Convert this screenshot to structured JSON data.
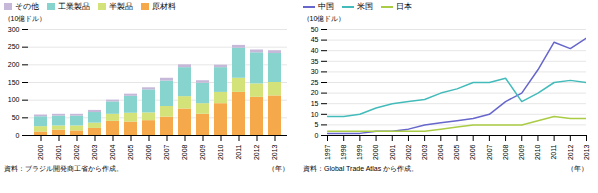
{
  "chart_data": [
    {
      "type": "bar",
      "stacked": true,
      "ylabel": "（10億ドル）",
      "xlabel": "（年）",
      "annotations": [
        "資料：ブラジル開発商工省から作成。"
      ],
      "categories": [
        "2000",
        "2001",
        "2002",
        "2003",
        "2004",
        "2005",
        "2006",
        "2007",
        "2008",
        "2009",
        "2010",
        "2011",
        "2012",
        "2013"
      ],
      "series": [
        {
          "name": "原材料",
          "color": "#F5A94B",
          "values": [
            10,
            15,
            13,
            20,
            40,
            38,
            42,
            52,
            75,
            60,
            90,
            122,
            108,
            112
          ]
        },
        {
          "name": "半製品",
          "color": "#D4E27A",
          "values": [
            15,
            12,
            14,
            15,
            20,
            25,
            22,
            30,
            35,
            30,
            32,
            40,
            38,
            38
          ]
        },
        {
          "name": "工業製品",
          "color": "#87D3CE",
          "values": [
            28,
            28,
            28,
            30,
            35,
            48,
            65,
            72,
            82,
            58,
            70,
            85,
            88,
            82
          ]
        },
        {
          "name": "その他",
          "color": "#C5B8D9",
          "values": [
            5,
            5,
            5,
            6,
            5,
            6,
            6,
            8,
            8,
            7,
            7,
            8,
            8,
            8
          ]
        }
      ],
      "ylim": [
        0,
        300
      ],
      "yticks": [
        0,
        50,
        100,
        150,
        200,
        250,
        300
      ],
      "grid": true,
      "legend": "upper left"
    },
    {
      "type": "line",
      "ylabel": "（10億ドル）",
      "xlabel": "（年）",
      "annotations": [
        "資料：Global Trade Atlas から作成。"
      ],
      "x": [
        1997,
        1998,
        1999,
        2000,
        2001,
        2002,
        2003,
        2004,
        2005,
        2006,
        2007,
        2008,
        2009,
        2010,
        2011,
        2012,
        2013
      ],
      "series": [
        {
          "name": "中国",
          "color": "#6666CC",
          "values": [
            1,
            1,
            1,
            2,
            2,
            3,
            5,
            6,
            7,
            8,
            10,
            16,
            20,
            31,
            44,
            41,
            46
          ]
        },
        {
          "name": "米国",
          "color": "#44BBBB",
          "values": [
            9,
            9,
            10,
            13,
            15,
            16,
            17,
            20,
            22,
            25,
            25,
            27,
            16,
            20,
            25,
            26,
            25
          ]
        },
        {
          "name": "日本",
          "color": "#AACC44",
          "values": [
            2,
            2,
            2,
            2,
            2,
            2,
            2,
            3,
            4,
            5,
            5,
            5,
            5,
            7,
            9,
            8,
            8
          ]
        }
      ],
      "xlim": [
        1997,
        2013
      ],
      "xticks": [
        1997,
        1998,
        1999,
        2000,
        2001,
        2002,
        2003,
        2004,
        2005,
        2006,
        2007,
        2008,
        2009,
        2010,
        2011,
        2012,
        2013
      ],
      "ylim": [
        0,
        50
      ],
      "yticks": [
        0,
        5,
        10,
        15,
        20,
        25,
        30,
        35,
        40,
        45,
        50
      ],
      "grid": true,
      "legend": "upper left"
    }
  ]
}
